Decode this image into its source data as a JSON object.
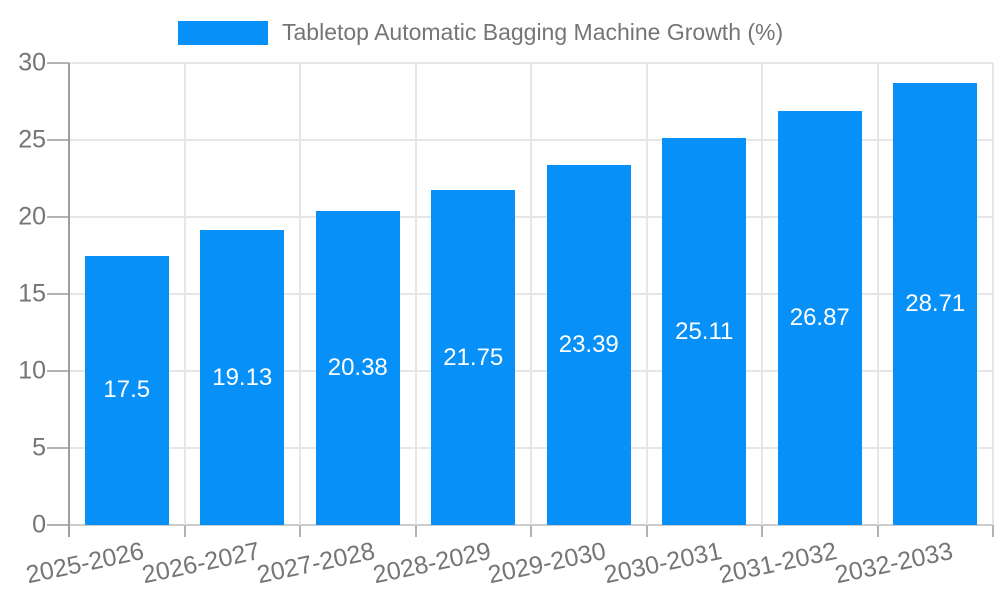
{
  "legend": {
    "label": "Tabletop Automatic Bagging Machine Growth (%)"
  },
  "chart_data": {
    "type": "bar",
    "title": "Tabletop Automatic Bagging Machine Growth (%)",
    "series_name": "Tabletop Automatic Bagging Machine Growth (%)",
    "categories": [
      "2025-2026",
      "2026-2027",
      "2027-2028",
      "2028-2029",
      "2029-2030",
      "2030-2031",
      "2031-2032",
      "2032-2033"
    ],
    "values": [
      17.5,
      19.13,
      20.38,
      21.75,
      23.39,
      25.11,
      26.87,
      28.71
    ],
    "value_labels": [
      "17.5",
      "19.13",
      "20.38",
      "21.75",
      "23.39",
      "25.11",
      "26.87",
      "28.71"
    ],
    "y_ticks": [
      0,
      5,
      10,
      15,
      20,
      25,
      30
    ],
    "ylim": [
      0,
      30
    ],
    "xlabel": "",
    "ylabel": "",
    "legend_position": "top",
    "grid": true,
    "colors": {
      "bar": "#0790f8",
      "gridline": "#e6e6e6",
      "baseline": "#cccccc",
      "axis": "#9e9e9e",
      "tick": "#b3b3b3",
      "axis_text": "#757575",
      "value_text": "#ffffff"
    }
  }
}
